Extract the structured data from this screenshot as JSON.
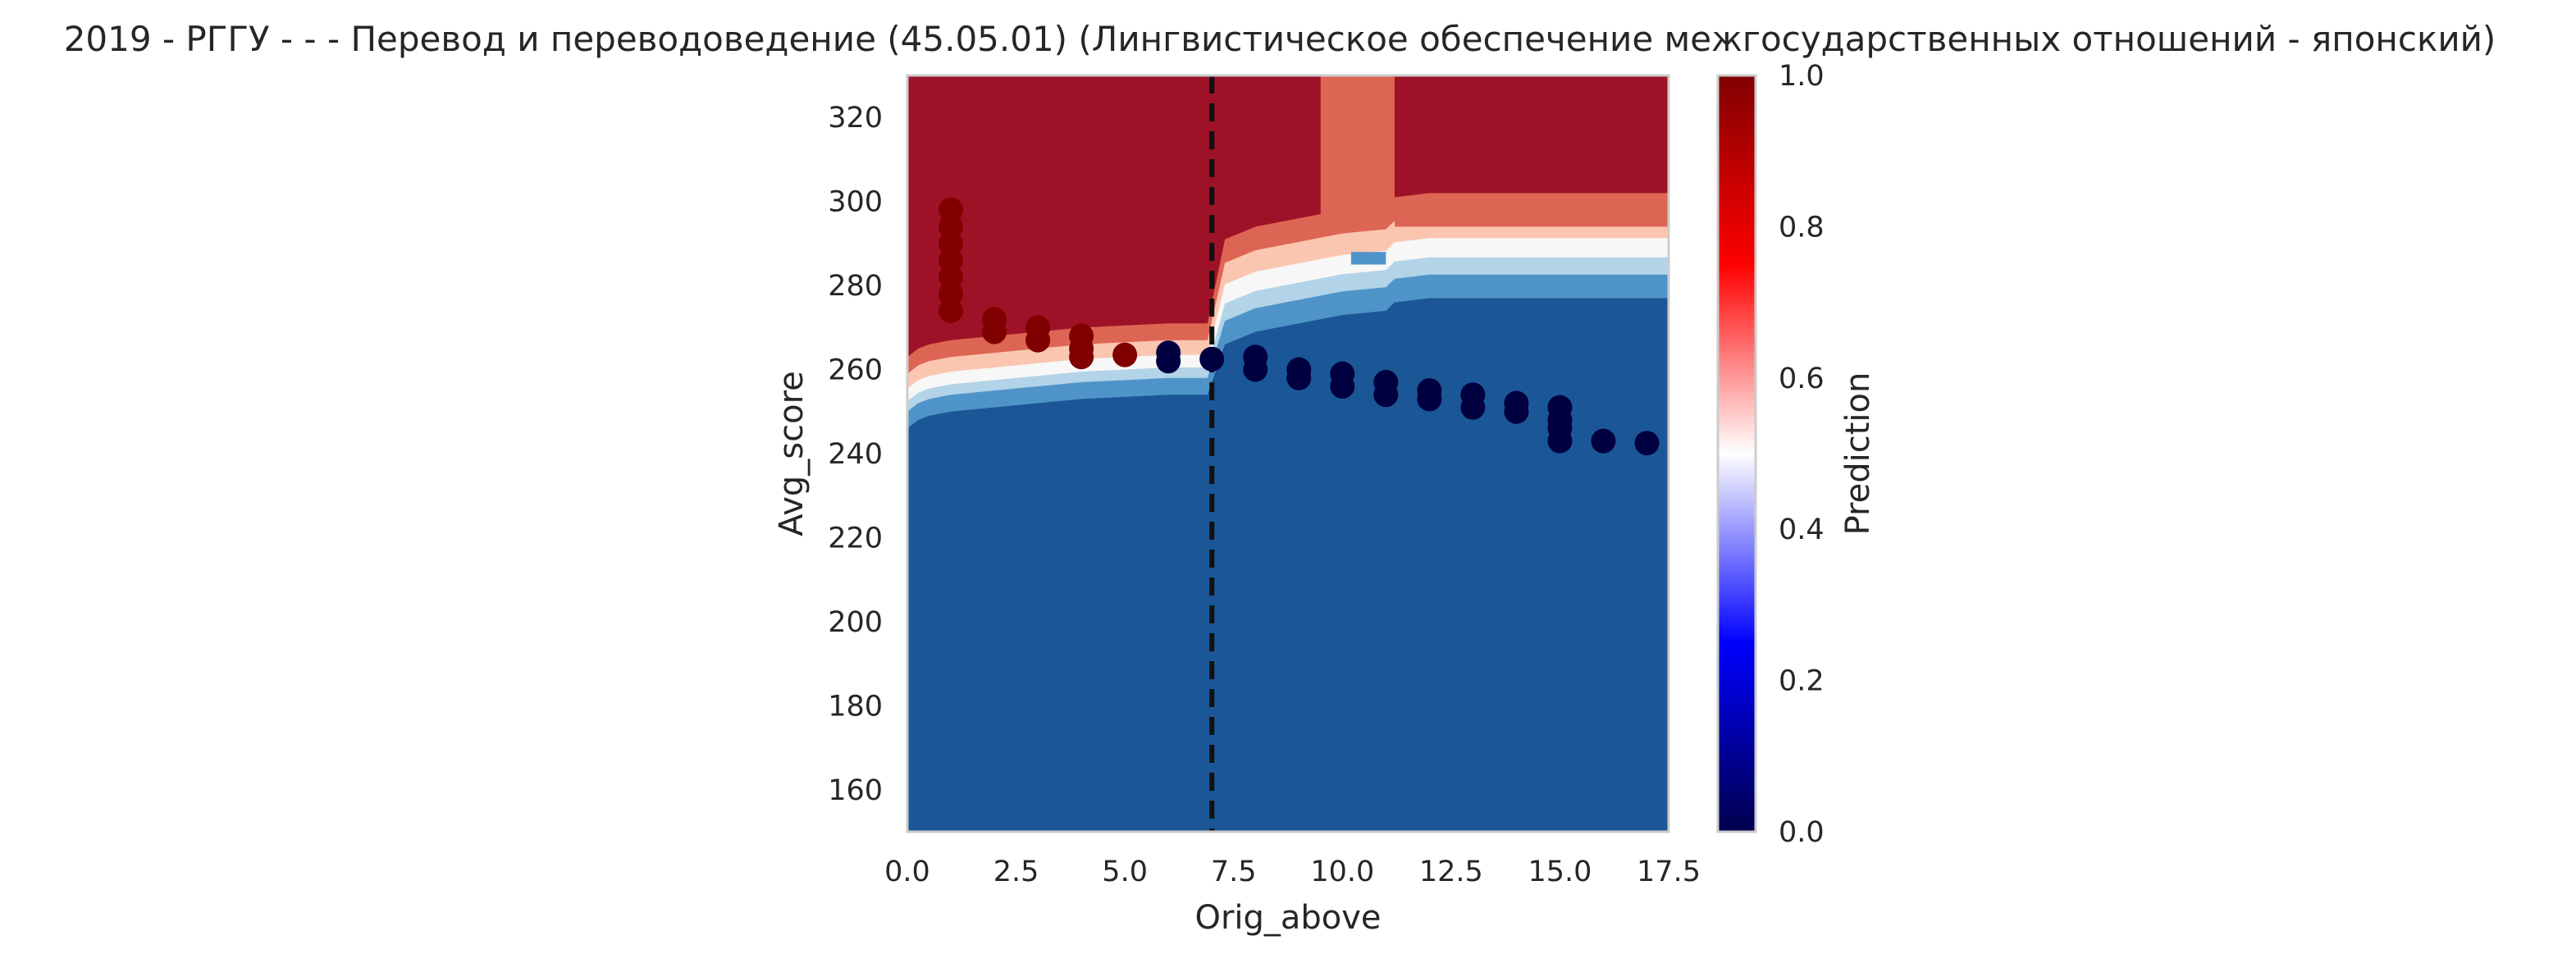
{
  "chart_data": {
    "type": "scatter",
    "title": "2019 - РГГУ - - - Перевод и переводоведение (45.05.01) (Лингвистическое обеспечение межгосударственных отношений - японский)",
    "xlabel": "Orig_above",
    "ylabel": "Avg_score",
    "xlim": [
      0,
      17.5
    ],
    "ylim": [
      150,
      330
    ],
    "xticks": [
      0.0,
      2.5,
      5.0,
      7.5,
      10.0,
      12.5,
      15.0,
      17.5
    ],
    "xtick_labels": [
      "0.0",
      "2.5",
      "5.0",
      "7.5",
      "10.0",
      "12.5",
      "15.0",
      "17.5"
    ],
    "yticks": [
      160,
      180,
      200,
      220,
      240,
      260,
      280,
      300,
      320
    ],
    "ytick_labels": [
      "160",
      "180",
      "200",
      "220",
      "240",
      "260",
      "280",
      "300",
      "320"
    ],
    "grid": false,
    "vline_x": 7,
    "vline_style": "dashed",
    "colorbar": {
      "label": "Prediction",
      "range": [
        0.0,
        1.0
      ],
      "ticks": [
        0.0,
        0.2,
        0.4,
        0.6,
        0.8,
        1.0
      ],
      "tick_labels": [
        "0.0",
        "0.2",
        "0.4",
        "0.6",
        "0.8",
        "1.0"
      ],
      "colormap": "seismic"
    },
    "background_contour": {
      "description_levels": [
        {
          "value": 0.05,
          "color": "#1b5797"
        },
        {
          "value": 0.2,
          "color": "#4f94c8"
        },
        {
          "value": 0.35,
          "color": "#b3d3e8"
        },
        {
          "value": 0.5,
          "color": "#f7f7f7"
        },
        {
          "value": 0.65,
          "color": "#fbc6b0"
        },
        {
          "value": 0.8,
          "color": "#dc6653"
        },
        {
          "value": 0.95,
          "color": "#9e1228"
        }
      ],
      "boundary_x": [
        0,
        0.25,
        0.5,
        1,
        2,
        3,
        4,
        5,
        6,
        6.5,
        6.9,
        7.3,
        8,
        9,
        9.5,
        10,
        11,
        11.2,
        12,
        14,
        16,
        17.5
      ],
      "boundary_y": [
        254,
        256,
        257,
        258,
        259,
        260,
        261,
        261.5,
        262,
        262,
        262,
        274,
        277,
        279,
        280,
        281,
        282,
        284,
        285,
        285,
        285,
        285
      ]
    },
    "series": [
      {
        "points": [
          {
            "x": 1,
            "y": 298,
            "p": 1
          },
          {
            "x": 1,
            "y": 294,
            "p": 1
          },
          {
            "x": 1,
            "y": 290,
            "p": 1
          },
          {
            "x": 1,
            "y": 286,
            "p": 1
          },
          {
            "x": 1,
            "y": 282,
            "p": 1
          },
          {
            "x": 1,
            "y": 278,
            "p": 1
          },
          {
            "x": 1,
            "y": 274,
            "p": 1
          },
          {
            "x": 2,
            "y": 272,
            "p": 1
          },
          {
            "x": 2,
            "y": 269,
            "p": 1
          },
          {
            "x": 3,
            "y": 270,
            "p": 1
          },
          {
            "x": 3,
            "y": 267,
            "p": 1
          },
          {
            "x": 4,
            "y": 268,
            "p": 1
          },
          {
            "x": 4,
            "y": 265,
            "p": 1
          },
          {
            "x": 4,
            "y": 263,
            "p": 1
          },
          {
            "x": 5,
            "y": 263.5,
            "p": 1
          },
          {
            "x": 6,
            "y": 264,
            "p": 0
          },
          {
            "x": 6,
            "y": 262,
            "p": 0
          },
          {
            "x": 7,
            "y": 262.5,
            "p": 0
          },
          {
            "x": 8,
            "y": 263,
            "p": 0
          },
          {
            "x": 8,
            "y": 260,
            "p": 0
          },
          {
            "x": 9,
            "y": 260,
            "p": 0
          },
          {
            "x": 9,
            "y": 258,
            "p": 0
          },
          {
            "x": 10,
            "y": 259,
            "p": 0
          },
          {
            "x": 10,
            "y": 256,
            "p": 0
          },
          {
            "x": 11,
            "y": 257,
            "p": 0
          },
          {
            "x": 11,
            "y": 254,
            "p": 0
          },
          {
            "x": 12,
            "y": 255,
            "p": 0
          },
          {
            "x": 12,
            "y": 253,
            "p": 0
          },
          {
            "x": 13,
            "y": 254,
            "p": 0
          },
          {
            "x": 13,
            "y": 251,
            "p": 0
          },
          {
            "x": 14,
            "y": 252,
            "p": 0
          },
          {
            "x": 14,
            "y": 250,
            "p": 0
          },
          {
            "x": 15,
            "y": 251,
            "p": 0
          },
          {
            "x": 15,
            "y": 248,
            "p": 0
          },
          {
            "x": 15,
            "y": 246,
            "p": 0
          },
          {
            "x": 15,
            "y": 243,
            "p": 0
          },
          {
            "x": 16,
            "y": 243,
            "p": 0
          },
          {
            "x": 17,
            "y": 242.5,
            "p": 0
          }
        ]
      }
    ],
    "colors": {
      "positive_point": "#800000",
      "negative_point": "#000040",
      "blue_fill": "#1b5797",
      "red_fill": "#9e1228",
      "frame": "#cccccc"
    }
  }
}
